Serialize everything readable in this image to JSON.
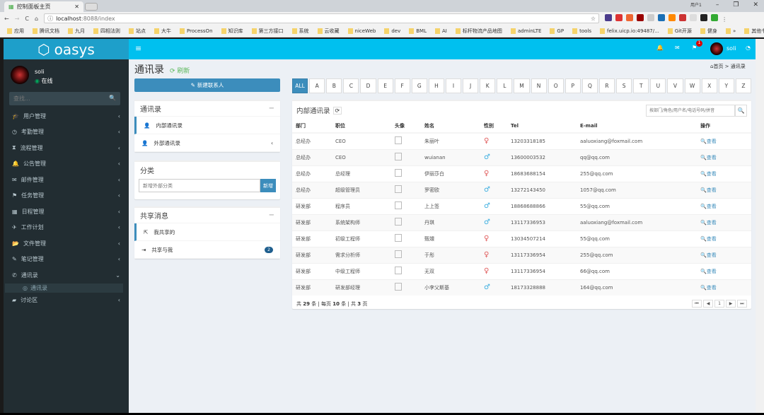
{
  "browser": {
    "tab_title": "控制面板主页",
    "url_host": "localhost",
    "url_path": ":8088/index",
    "user_label": "用户1",
    "bookmarks": [
      "应用",
      "腾讯文档",
      "九月",
      "四相法则",
      "站点",
      "大牛",
      "ProcessOn",
      "知识库",
      "第三方接口",
      "系统",
      "云收藏",
      "niceWeb",
      "dev",
      "BML",
      "AI",
      "标杆物流产品地图",
      "adminLTE",
      "GP",
      "tools",
      "felix.uicp.io:49487/...",
      "Git开源",
      "健身",
      "»",
      "其他书签"
    ]
  },
  "app": {
    "logo": "oasys",
    "user": "soli",
    "status": "在线",
    "search_placeholder": "查找...",
    "flag_count": "1"
  },
  "sidebar": {
    "items": [
      {
        "icon": "graduation-cap-icon",
        "g": "🎓",
        "label": "用户管理"
      },
      {
        "icon": "clock-icon",
        "g": "◷",
        "label": "考勤管理"
      },
      {
        "icon": "hourglass-icon",
        "g": "⧗",
        "label": "流程管理"
      },
      {
        "icon": "bell-icon",
        "g": "🔔",
        "label": "公告管理"
      },
      {
        "icon": "envelope-icon",
        "g": "✉",
        "label": "邮件管理"
      },
      {
        "icon": "flag-icon",
        "g": "⚑",
        "label": "任务管理"
      },
      {
        "icon": "calendar-icon",
        "g": "▦",
        "label": "日程管理"
      },
      {
        "icon": "plane-icon",
        "g": "✈",
        "label": "工作计划"
      },
      {
        "icon": "folder-open-icon",
        "g": "📂",
        "label": "文件管理"
      },
      {
        "icon": "edit-icon",
        "g": "✎",
        "label": "笔记管理"
      },
      {
        "icon": "phone-icon",
        "g": "✆",
        "label": "通讯录"
      }
    ],
    "sub": "通讯录",
    "last": {
      "icon": "comment-icon",
      "g": "▰",
      "label": "讨论区"
    }
  },
  "page": {
    "title": "通讯录",
    "refresh": "刷新",
    "breadcrumb_home": "首页",
    "breadcrumb_current": "通讯录",
    "new_contact": "新建联系人"
  },
  "contacts_box": {
    "title": "通讯录",
    "items": [
      "内部通讯录",
      "外部通讯录"
    ]
  },
  "category_box": {
    "title": "分类",
    "placeholder": "新增外部分类",
    "button": "新增"
  },
  "share_box": {
    "title": "共享消息",
    "items": [
      "我共享的",
      "共享与我"
    ],
    "badge": "2"
  },
  "alphabet": [
    "ALL",
    "A",
    "B",
    "C",
    "D",
    "E",
    "F",
    "G",
    "H",
    "I",
    "J",
    "K",
    "L",
    "M",
    "N",
    "O",
    "P",
    "Q",
    "R",
    "S",
    "T",
    "U",
    "V",
    "W",
    "X",
    "Y",
    "Z"
  ],
  "table": {
    "title": "内部通讯录",
    "search_placeholder": "按部门/角色/用户名/电话号码/拼音",
    "headers": [
      "部门",
      "职位",
      "头像",
      "姓名",
      "性别",
      "Tel",
      "E-mail",
      "操作"
    ],
    "view_label": "查看",
    "rows": [
      [
        "总经办",
        "CEO",
        "朱丽叶",
        "female",
        "13203318185",
        "aaluoxiang@foxmail.com"
      ],
      [
        "总经办",
        "CEO",
        "wuianan",
        "male",
        "13600003532",
        "qq@qq.com"
      ],
      [
        "总经办",
        "总经理",
        "伊丽莎白",
        "female",
        "18683688154",
        "255@qq.com"
      ],
      [
        "总经办",
        "超级管理员",
        "罗密欧",
        "male",
        "13272143450",
        "1057@qq.com"
      ],
      [
        "研发部",
        "程序员",
        "上上签",
        "male",
        "18868688866",
        "55@qq.com"
      ],
      [
        "研发部",
        "系统架构师",
        "丹琪",
        "male",
        "13117336953",
        "aaluoxiang@foxmail.com"
      ],
      [
        "研发部",
        "初级工程师",
        "甄嬛",
        "female",
        "13034507214",
        "55@qq.com"
      ],
      [
        "研发部",
        "需求分析师",
        "于彤",
        "female",
        "13117336954",
        "255@qq.com"
      ],
      [
        "研发部",
        "中级工程师",
        "无双",
        "female",
        "13117336954",
        "66@qq.com"
      ],
      [
        "研发部",
        "研发部经理",
        "小李父斯基",
        "male",
        "18173328888",
        "164@qq.com"
      ]
    ],
    "footer": {
      "p1": "共",
      "total": "29",
      "p2": "条 | 每页",
      "per_page": "10",
      "p3": "条 | 共",
      "pages": "3",
      "p4": "页"
    },
    "current_page": "1"
  },
  "colors": {
    "header": "#00c0ef",
    "sidebar": "#222d32",
    "primary": "#3c8dbc",
    "female": "#e05b5b",
    "male": "#3caee0"
  }
}
